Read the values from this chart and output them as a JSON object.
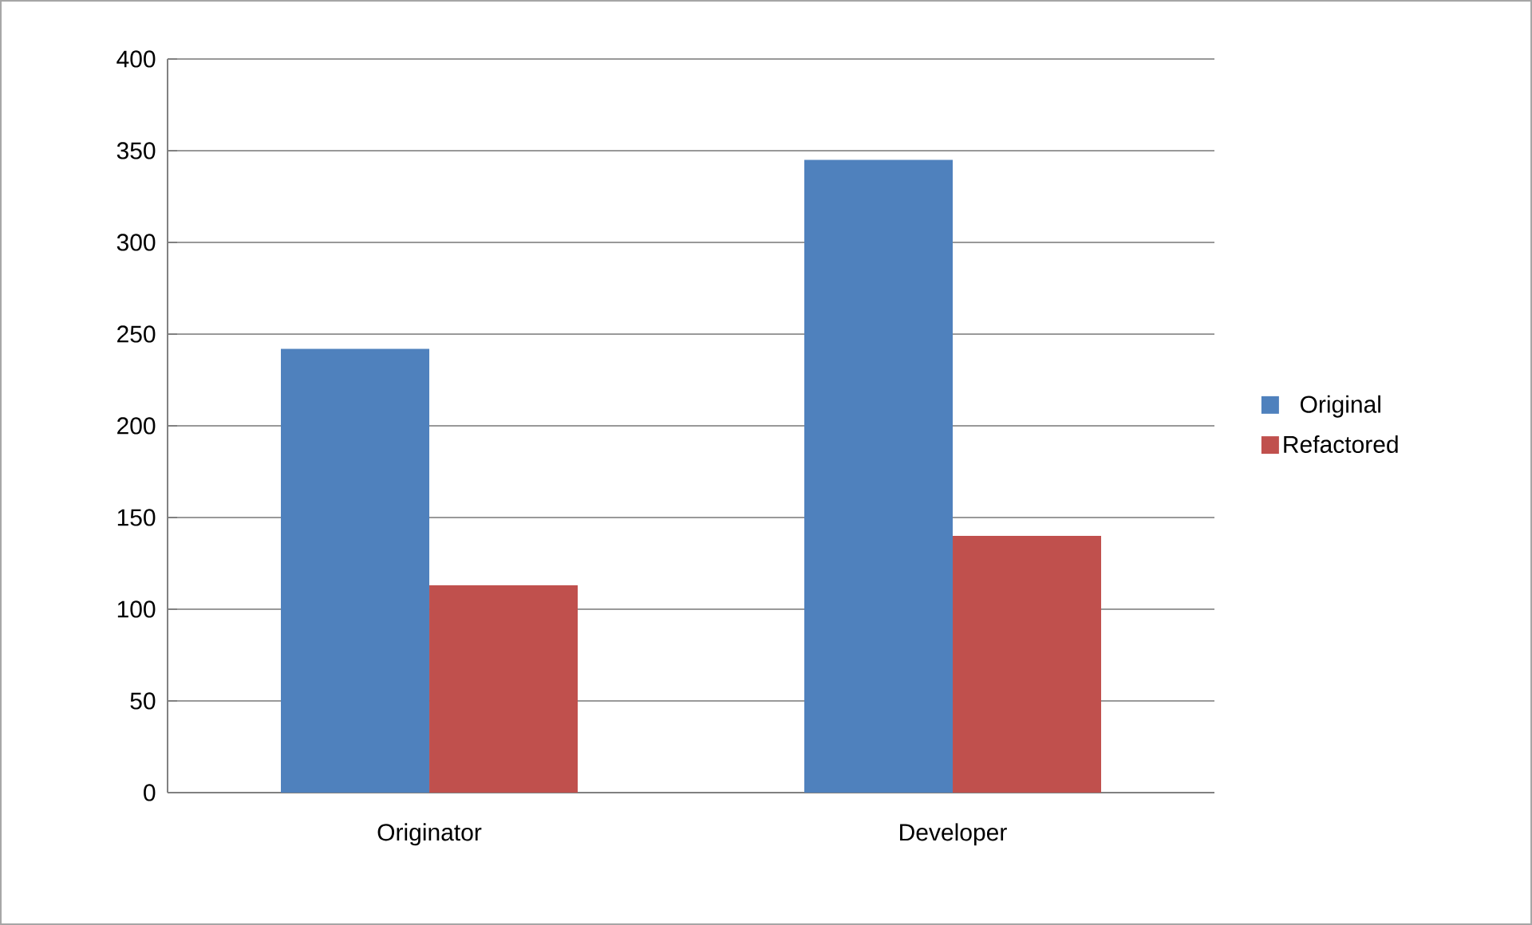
{
  "chart_data": {
    "type": "bar",
    "categories": [
      "Originator",
      "Developer"
    ],
    "series": [
      {
        "name": "Original",
        "color": "#4f81bd",
        "values": [
          242,
          345
        ]
      },
      {
        "name": "Refactored",
        "color": "#c0504d",
        "values": [
          113,
          140
        ]
      }
    ],
    "ylim": [
      0,
      400
    ],
    "yticks": [
      0,
      50,
      100,
      150,
      200,
      250,
      300,
      350,
      400
    ],
    "grid": "y",
    "legend": "right"
  }
}
